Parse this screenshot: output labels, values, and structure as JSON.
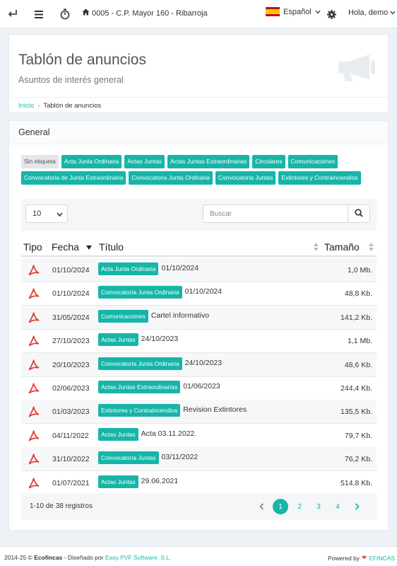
{
  "topbar": {
    "community": "0005 - C.P. Mayor 160 - Ribarroja",
    "language": "Español",
    "greeting": "Hola, demo",
    "icons": [
      "back-icon",
      "menu-icon",
      "timer-icon",
      "home-icon",
      "spain-flag",
      "gear-icon"
    ]
  },
  "header": {
    "title": "Tablón de anuncios",
    "subtitle": "Asuntos de interés general",
    "breadcrumb_home": "Inicio",
    "breadcrumb_current": "Tablón de anuncios"
  },
  "main": {
    "section_title": "General",
    "tags": [
      "Sin etiqueta",
      "Acta Junta Ordinaria",
      "Actas Juntas",
      "Actas Juntas Extraordinarias",
      "Circulares",
      "Comunicaciones",
      "Convocatoria de Junta Extraordinaria",
      "Convocatoria Junta Ordinaria",
      "Convocatoria Juntas",
      "Extintores y Contraincendios"
    ]
  },
  "table": {
    "page_size": "10",
    "search_placeholder": "Buscar",
    "headers": {
      "tipo": "Tipo",
      "fecha": "Fecha",
      "titulo": "Título",
      "tamano": "Tamaño"
    },
    "rows": [
      {
        "date": "01/10/2024",
        "tag": "Acta Junta Ordinaria",
        "title": "01/10/2024",
        "size": "1,0 Mb."
      },
      {
        "date": "01/10/2024",
        "tag": "Convocatoria Junta Ordinaria",
        "title": "01/10/2024",
        "size": "48,8 Kb."
      },
      {
        "date": "31/05/2024",
        "tag": "Comunicaciones",
        "title": "Cartel informativo",
        "size": "141,2 Kb."
      },
      {
        "date": "27/10/2023",
        "tag": "Actas Juntas",
        "title": "24/10/2023",
        "size": "1,1 Mb."
      },
      {
        "date": "20/10/2023",
        "tag": "Convocatoria Junta Ordinaria",
        "title": "24/10/2023",
        "size": "48,6 Kb."
      },
      {
        "date": "02/06/2023",
        "tag": "Actas Juntas Extraordinarias",
        "title": "01/06/2023",
        "size": "244,4 Kb."
      },
      {
        "date": "01/03/2023",
        "tag": "Extintores y Contraincendios",
        "title": "Revision Extintores",
        "size": "135,5 Kb."
      },
      {
        "date": "04/11/2022",
        "tag": "Actas Juntas",
        "title": "Acta 03.11.2022.",
        "size": "79,7 Kb."
      },
      {
        "date": "31/10/2022",
        "tag": "Convocatoria Juntas",
        "title": "03/11/2022",
        "size": "76,2 Kb."
      },
      {
        "date": "01/07/2021",
        "tag": "Actas Juntas",
        "title": "29.06.2021",
        "size": "514,8 Kb."
      }
    ],
    "records_info": "1-10 de 38 registros",
    "pages": [
      "1",
      "2",
      "3",
      "4"
    ],
    "current_page": "1"
  },
  "footer": {
    "copyright": "2014-25 © ",
    "brand": "Ecofincas",
    "designed_by": " - Diseñado por ",
    "designer": "Easy PVF Software, S.L.",
    "powered_by": "Powered by",
    "powered_brand": "EFINCAS"
  },
  "colors": {
    "accent": "#17b5a8",
    "pdf": "#e03a2f",
    "heart": "#e84a4a"
  }
}
